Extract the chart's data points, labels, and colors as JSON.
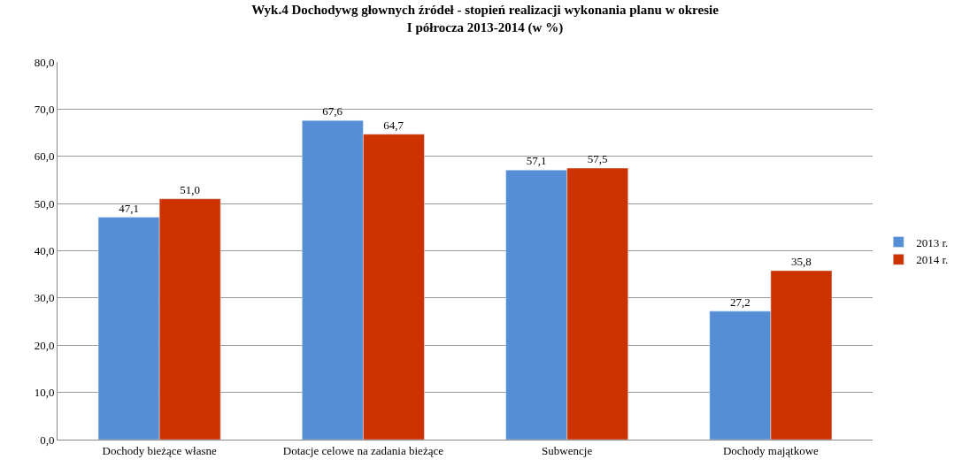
{
  "chart_data": {
    "type": "bar",
    "title": "Wyk.4 Dochodywg głownych źródeł - stopień realizacji wykonania planu w okresie\nI półrocza 2013-2014 (w %)",
    "categories": [
      "Dochody bieżące własne",
      "Dotacje celowe na zadania bieżące",
      "Subwencje",
      "Dochody majątkowe"
    ],
    "series": [
      {
        "name": "2013 r.",
        "color": "#558ed5",
        "values": [
          47.1,
          67.6,
          57.1,
          27.2
        ],
        "value_labels": [
          "47,1",
          "67,6",
          "57,1",
          "27,2"
        ]
      },
      {
        "name": "2014 r.",
        "color": "#cc3300",
        "values": [
          51.0,
          64.7,
          57.5,
          35.8
        ],
        "value_labels": [
          "51,0",
          "64,7",
          "57,5",
          "35,8"
        ]
      }
    ],
    "ylim": [
      0,
      80
    ],
    "yticks": [
      {
        "value": 0,
        "label": "0,0"
      },
      {
        "value": 10,
        "label": "10,0"
      },
      {
        "value": 20,
        "label": "20,0"
      },
      {
        "value": 30,
        "label": "30,0"
      },
      {
        "value": 40,
        "label": "40,0"
      },
      {
        "value": 50,
        "label": "50,0"
      },
      {
        "value": 60,
        "label": "60,0"
      },
      {
        "value": 70,
        "label": "70,0"
      },
      {
        "value": 80,
        "label": "80,0"
      }
    ],
    "grid": "y",
    "legend": "right"
  }
}
